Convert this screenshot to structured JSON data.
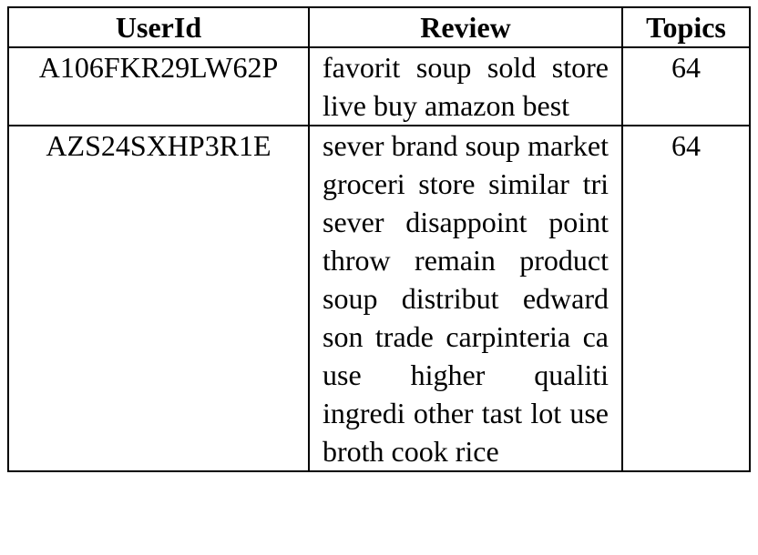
{
  "table": {
    "headers": {
      "userid": "UserId",
      "review": "Review",
      "topics": "Topics"
    },
    "rows": [
      {
        "userid": "A106FKR29LW62P",
        "review": "favorit soup sold store live buy ama­zon best",
        "topics": "64"
      },
      {
        "userid": "AZS24SXHP3R1E",
        "review": "sever brand soup market groceri store similar tri sever dis­appoint point throw remain product soup distribut edward son trade carpinteria ca use higher qualiti ingredi other tast lot use broth cook rice",
        "topics": "64"
      }
    ]
  }
}
